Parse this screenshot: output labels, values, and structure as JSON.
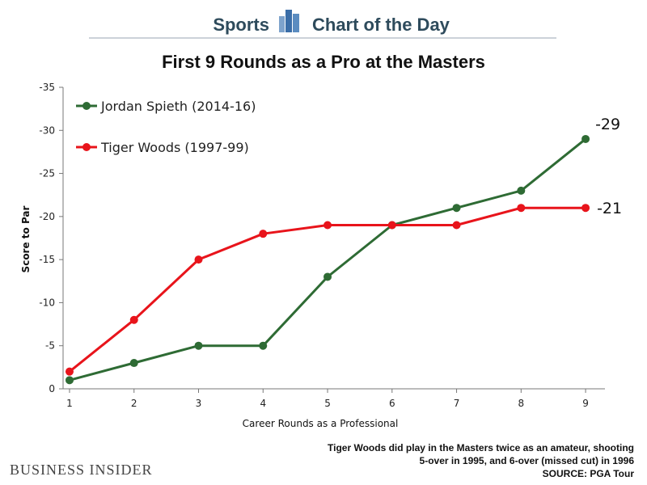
{
  "header": {
    "left": "Sports",
    "right": "Chart of the Day"
  },
  "brand": "BUSINESS INSIDER",
  "note": {
    "lines": [
      "Tiger Woods did play in the Masters twice as an amateur, shooting",
      "5-over in 1995, and 6-over (missed cut) in 1996"
    ],
    "source": "SOURCE: PGA Tour"
  },
  "colors": {
    "spieth": "#2e6b34",
    "woods": "#e8141b",
    "header": "#2e4b5c",
    "icon": "#3b6ea8"
  },
  "chart_data": {
    "type": "line",
    "title": "First 9 Rounds as a Pro at the Masters",
    "xlabel": "Career Rounds as a Professional",
    "ylabel": "Score to Par",
    "x": [
      1,
      2,
      3,
      4,
      5,
      6,
      7,
      8,
      9
    ],
    "xlim": [
      0.9,
      9.3
    ],
    "ylim": [
      0,
      -35
    ],
    "yticks": [
      0,
      -5,
      -10,
      -15,
      -20,
      -25,
      -30,
      -35
    ],
    "ytick_labels": [
      "0",
      "-5",
      "-10",
      "-15",
      "-20",
      "-25",
      "-30",
      "-35"
    ],
    "legend": "top-left",
    "series": [
      {
        "name": "Jordan Spieth (2014-16)",
        "values": [
          -1,
          -3,
          -5,
          -5,
          -13,
          -19,
          -21,
          -23,
          -29
        ],
        "end_label": "-29"
      },
      {
        "name": "Tiger Woods (1997-99)",
        "values": [
          -2,
          -8,
          -15,
          -18,
          -19,
          -19,
          -19,
          -21,
          -21
        ],
        "end_label": "-21"
      }
    ]
  }
}
